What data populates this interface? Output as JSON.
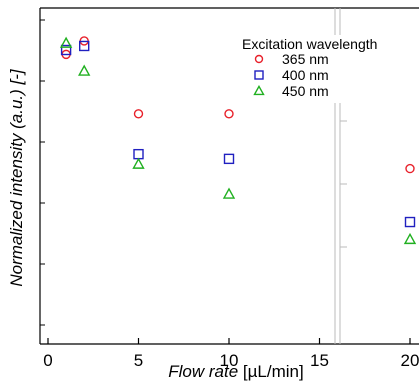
{
  "chart_data": {
    "type": "scatter",
    "title": "",
    "xlabel": "Flow rate",
    "xunit": "[µL/min]",
    "ylabel": "Normalized intensity (a.u.) [-]",
    "xlim": [
      -0.5,
      20.5
    ],
    "xticks": [
      "0",
      "5",
      "10",
      "15",
      "20"
    ],
    "grid": false,
    "legend": {
      "title": "Excitation wavelength",
      "placement": "top-right"
    },
    "series": [
      {
        "name": "365 nm",
        "marker": "circle",
        "color": "#e8202a",
        "x": [
          1,
          2,
          5,
          10,
          20
        ],
        "y": [
          0.862,
          0.902,
          0.685,
          0.685,
          0.522
        ]
      },
      {
        "name": "400 nm",
        "marker": "square",
        "color": "#2020c0",
        "x": [
          1,
          2,
          5,
          10,
          20
        ],
        "y": [
          0.875,
          0.887,
          0.565,
          0.551,
          0.363
        ]
      },
      {
        "name": "450 nm",
        "marker": "triangle",
        "color": "#20b020",
        "x": [
          1,
          2,
          5,
          10,
          20
        ],
        "y": [
          0.895,
          0.812,
          0.535,
          0.446,
          0.311
        ]
      }
    ]
  }
}
